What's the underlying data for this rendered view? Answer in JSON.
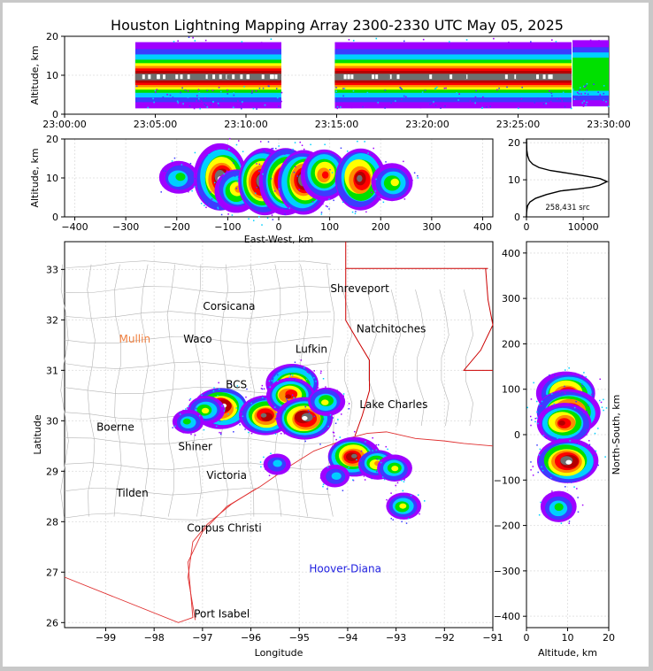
{
  "title": "Houston Lightning Mapping Array 2300-2330 UTC May 05, 2025",
  "colors": {
    "border": "#c8c8c8",
    "state_line": "#cc0000",
    "county_line": "#b4b4b4",
    "coast": "#e03030",
    "density_scale": [
      "#9f00ff",
      "#3c3cff",
      "#00d0ff",
      "#00e000",
      "#ffff00",
      "#ff8c00",
      "#ff0000",
      "#b40000",
      "#6e6e6e",
      "#ffffff"
    ]
  },
  "chart_data": [
    {
      "type": "heatmap",
      "id": "alt_time",
      "xlabel": "",
      "ylabel": "Altitude, km",
      "xlim": [
        "23:00:00",
        "23:30:00"
      ],
      "ylim": [
        0,
        20
      ],
      "xticks": [
        "23:00:00",
        "23:05:00",
        "23:10:00",
        "23:15:00",
        "23:20:00",
        "23:25:00",
        "23:30:00"
      ],
      "yticks": [
        "0",
        "10",
        "20"
      ],
      "segments": [
        {
          "start_min": 3.9,
          "end_min": 11.95,
          "center_km": 9.5,
          "intensity": 1.0
        },
        {
          "start_min": 14.9,
          "end_min": 27.95,
          "center_km": 9.5,
          "intensity": 1.0
        },
        {
          "start_min": 28.0,
          "end_min": 30.0,
          "center_km": 10.0,
          "intensity": 0.45
        }
      ]
    },
    {
      "type": "heatmap",
      "id": "alt_ew",
      "xlabel": "East-West, km",
      "ylabel": "Altitude, km",
      "xlim": [
        -420,
        420
      ],
      "ylim": [
        0,
        20
      ],
      "xticks": [
        "−400",
        "−300",
        "−200",
        "−100",
        "0",
        "100",
        "200",
        "300",
        "400"
      ],
      "yticks": [
        "0",
        "10",
        "20"
      ],
      "cells": [
        {
          "x": -195,
          "z": 10,
          "i": 0.35
        },
        {
          "x": -112,
          "z": 10,
          "i": 1.0
        },
        {
          "x": -82,
          "z": 7,
          "i": 0.55
        },
        {
          "x": -30,
          "z": 9,
          "i": 1.0
        },
        {
          "x": 15,
          "z": 9,
          "i": 1.0
        },
        {
          "x": 50,
          "z": 9,
          "i": 0.95
        },
        {
          "x": 88,
          "z": 11,
          "i": 0.7
        },
        {
          "x": 160,
          "z": 10,
          "i": 0.9
        },
        {
          "x": 225,
          "z": 9,
          "i": 0.45
        }
      ]
    },
    {
      "type": "line",
      "id": "alt_hist",
      "annotation": "258,431 src",
      "xlim": [
        0,
        14500
      ],
      "ylim": [
        0,
        21
      ],
      "xticks": [
        "0",
        "10000"
      ],
      "yticks": [
        "0",
        "10",
        "20"
      ],
      "x": [
        0,
        20,
        80,
        200,
        600,
        1600,
        3500,
        6000,
        9000,
        11500,
        12800,
        14200,
        13000,
        10500,
        7200,
        4200,
        2200,
        1100,
        500,
        200,
        60,
        10
      ],
      "y": [
        0,
        1,
        2,
        3,
        4,
        5,
        6,
        7,
        7.5,
        8,
        8.5,
        9.5,
        10.3,
        11,
        11.8,
        12.5,
        13.3,
        14.2,
        15.2,
        16.5,
        18,
        21
      ]
    },
    {
      "type": "heatmap",
      "id": "plan_view",
      "xlabel": "Longitude",
      "ylabel": "Latitude",
      "xlim": [
        -99.85,
        -91.0
      ],
      "ylim": [
        25.9,
        33.55
      ],
      "xticks": [
        "−99",
        "−98",
        "−97",
        "−96",
        "−95",
        "−94",
        "−93",
        "−92",
        "−91"
      ],
      "yticks": [
        "26",
        "27",
        "28",
        "29",
        "30",
        "31",
        "32",
        "33"
      ],
      "cities": [
        {
          "name": "Shreveport",
          "lon": -93.75,
          "lat": 32.55,
          "color": "#000000"
        },
        {
          "name": "Corsicana",
          "lon": -96.45,
          "lat": 32.2,
          "color": "#000000"
        },
        {
          "name": "Natchitoches",
          "lon": -93.1,
          "lat": 31.75,
          "color": "#000000"
        },
        {
          "name": "Mullin",
          "lon": -98.4,
          "lat": 31.55,
          "color": "#f08040"
        },
        {
          "name": "Waco",
          "lon": -97.1,
          "lat": 31.55,
          "color": "#000000"
        },
        {
          "name": "Lufkin",
          "lon": -94.75,
          "lat": 31.35,
          "color": "#000000"
        },
        {
          "name": "BCS",
          "lon": -96.3,
          "lat": 30.65,
          "color": "#000000"
        },
        {
          "name": "Lake Charles",
          "lon": -93.05,
          "lat": 30.25,
          "color": "#000000"
        },
        {
          "name": "Boerne",
          "lon": -98.8,
          "lat": 29.8,
          "color": "#000000"
        },
        {
          "name": "Shiner",
          "lon": -97.15,
          "lat": 29.42,
          "color": "#000000"
        },
        {
          "name": "Victoria",
          "lon": -96.5,
          "lat": 28.85,
          "color": "#000000"
        },
        {
          "name": "Tilden",
          "lon": -98.45,
          "lat": 28.5,
          "color": "#000000"
        },
        {
          "name": "Corpus Christi",
          "lon": -96.55,
          "lat": 27.8,
          "color": "#000000"
        },
        {
          "name": "Hoover-Diana",
          "lon": -94.05,
          "lat": 27.0,
          "color": "#2020e0"
        },
        {
          "name": "Port Isabel",
          "lon": -96.6,
          "lat": 26.1,
          "color": "#000000"
        }
      ],
      "clusters": [
        {
          "lon": -96.6,
          "lat": 30.27,
          "i": 0.95
        },
        {
          "lon": -96.95,
          "lat": 30.2,
          "i": 0.5
        },
        {
          "lon": -97.3,
          "lat": 29.98,
          "i": 0.35
        },
        {
          "lon": -95.7,
          "lat": 30.1,
          "i": 0.9
        },
        {
          "lon": -95.15,
          "lat": 30.72,
          "i": 0.9
        },
        {
          "lon": -95.2,
          "lat": 30.5,
          "i": 0.8
        },
        {
          "lon": -94.88,
          "lat": 30.05,
          "i": 1.0
        },
        {
          "lon": -94.45,
          "lat": 30.38,
          "i": 0.5
        },
        {
          "lon": -93.9,
          "lat": 29.3,
          "i": 0.9
        },
        {
          "lon": -93.4,
          "lat": 29.15,
          "i": 0.55
        },
        {
          "lon": -93.05,
          "lat": 29.05,
          "i": 0.45
        },
        {
          "lon": -94.25,
          "lat": 28.9,
          "i": 0.3
        },
        {
          "lon": -92.85,
          "lat": 28.3,
          "i": 0.45
        },
        {
          "lon": -95.45,
          "lat": 29.15,
          "i": 0.25
        }
      ]
    },
    {
      "type": "heatmap",
      "id": "ns_alt",
      "xlabel": "Altitude, km",
      "ylabel": "North-South, km",
      "xlim": [
        0,
        20
      ],
      "ylim": [
        -425,
        425
      ],
      "xticks": [
        "0",
        "10",
        "20"
      ],
      "yticks": [
        "−400",
        "−300",
        "−200",
        "−100",
        "0",
        "100",
        "200",
        "300",
        "400"
      ],
      "cells": [
        {
          "z": 10,
          "y": 90,
          "i": 0.9
        },
        {
          "z": 10,
          "y": 50,
          "i": 1.0
        },
        {
          "z": 9,
          "y": 25,
          "i": 0.8
        },
        {
          "z": 10,
          "y": -58,
          "i": 0.95
        },
        {
          "z": 8,
          "y": -160,
          "i": 0.4
        }
      ]
    }
  ]
}
